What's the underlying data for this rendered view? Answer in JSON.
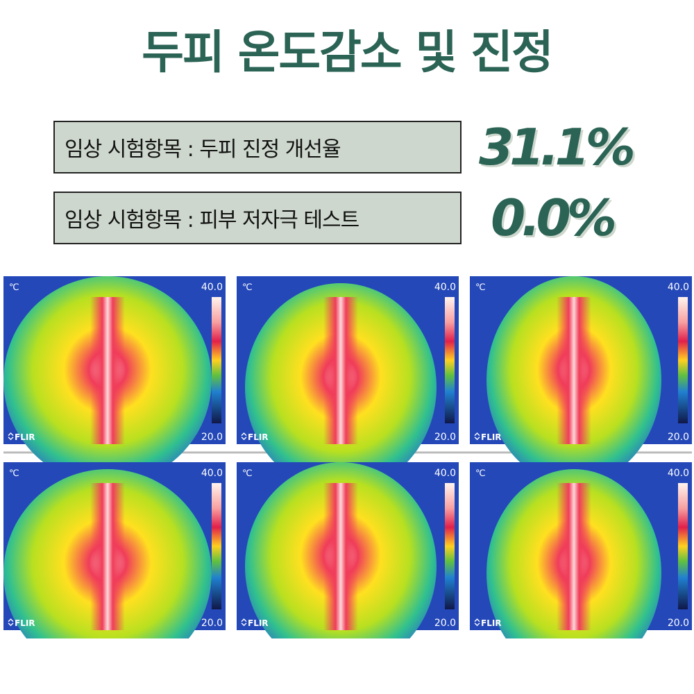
{
  "header": {
    "title": "두피 온도감소 및 진정"
  },
  "results": [
    {
      "label": "임상 시험항목 : 두피 진정 개선율",
      "value": "31.1%"
    },
    {
      "label": "임상 시험항목 : 피부 저자극 테스트",
      "value": "0.0%"
    }
  ],
  "images": [
    {
      "unit": "℃",
      "max": "40.0",
      "min": "20.0",
      "logo": "FLIR"
    },
    {
      "unit": "℃",
      "max": "40.0",
      "min": "20.0",
      "logo": "FLIR"
    },
    {
      "unit": "℃",
      "max": "40.0",
      "min": "20.0",
      "logo": "FLIR"
    },
    {
      "unit": "℃",
      "max": "40.0",
      "min": "20.0",
      "logo": "FLIR"
    },
    {
      "unit": "℃",
      "max": "40.0",
      "min": "20.0",
      "logo": "FLIR"
    },
    {
      "unit": "℃",
      "max": "40.0",
      "min": "20.0",
      "logo": "FLIR"
    }
  ]
}
